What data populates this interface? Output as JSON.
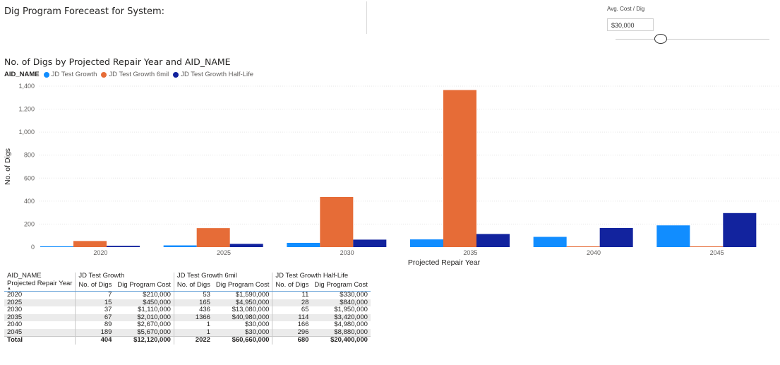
{
  "header": {
    "title": "Dig Program Foreceast for System:"
  },
  "slicer": {
    "label": "Avg. Cost / Dig",
    "value": "$30,000"
  },
  "colors": {
    "series1": "#118DFF",
    "series2": "#E66C37",
    "series3": "#12239E"
  },
  "chart_data": {
    "type": "bar",
    "title": "No. of Digs by Projected Repair Year and AID_NAME",
    "legend_title": "AID_NAME",
    "xlabel": "Projected Repair Year",
    "ylabel": "No. of Digs",
    "ylim": [
      0,
      1400
    ],
    "yticks": [
      "0",
      "200",
      "400",
      "600",
      "800",
      "1,000",
      "1,200",
      "1,400"
    ],
    "grid": true,
    "legend_position": "top-left",
    "categories": [
      "2020",
      "2025",
      "2030",
      "2035",
      "2040",
      "2045"
    ],
    "series": [
      {
        "name": "JD Test Growth",
        "values": [
          7,
          15,
          37,
          67,
          89,
          189
        ]
      },
      {
        "name": "JD Test Growth 6mil",
        "values": [
          53,
          165,
          436,
          1366,
          1,
          1
        ]
      },
      {
        "name": "JD Test Growth Half-Life",
        "values": [
          11,
          28,
          65,
          114,
          166,
          296
        ]
      }
    ]
  },
  "table": {
    "corner_top": "AID_NAME",
    "corner_bottom": "Projected Repair Year",
    "sort_icon": "sort-ascending-icon",
    "groups": [
      "JD Test Growth",
      "JD Test Growth 6mil",
      "JD Test Growth Half-Life"
    ],
    "columns": [
      "No. of Digs",
      "Dig Program Cost"
    ],
    "rows": [
      {
        "year": "2020",
        "cells": [
          "7",
          "$210,000",
          "53",
          "$1,590,000",
          "11",
          "$330,000"
        ]
      },
      {
        "year": "2025",
        "cells": [
          "15",
          "$450,000",
          "165",
          "$4,950,000",
          "28",
          "$840,000"
        ]
      },
      {
        "year": "2030",
        "cells": [
          "37",
          "$1,110,000",
          "436",
          "$13,080,000",
          "65",
          "$1,950,000"
        ]
      },
      {
        "year": "2035",
        "cells": [
          "67",
          "$2,010,000",
          "1366",
          "$40,980,000",
          "114",
          "$3,420,000"
        ]
      },
      {
        "year": "2040",
        "cells": [
          "89",
          "$2,670,000",
          "1",
          "$30,000",
          "166",
          "$4,980,000"
        ]
      },
      {
        "year": "2045",
        "cells": [
          "189",
          "$5,670,000",
          "1",
          "$30,000",
          "296",
          "$8,880,000"
        ]
      }
    ],
    "total": {
      "label": "Total",
      "cells": [
        "404",
        "$12,120,000",
        "2022",
        "$60,660,000",
        "680",
        "$20,400,000"
      ]
    }
  }
}
